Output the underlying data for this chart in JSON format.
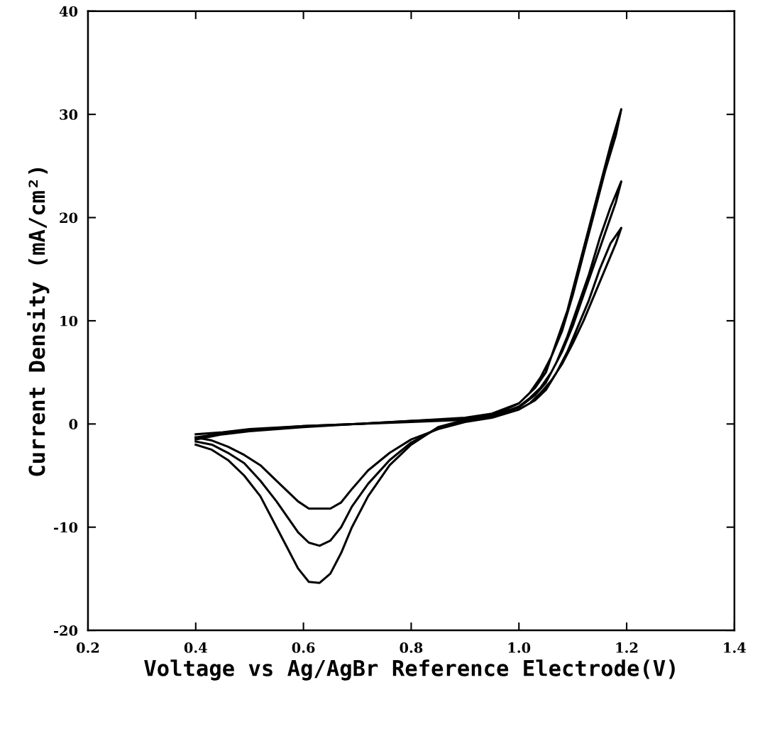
{
  "chart_data": {
    "type": "line",
    "xlabel": "Voltage vs Ag/AgBr Reference Electrode(V)",
    "ylabel": "Current Density (mA/cm²)",
    "xlim": [
      0.2,
      1.4
    ],
    "xticks": [
      {
        "value": 0.2,
        "label": "0.2"
      },
      {
        "value": 0.4,
        "label": "0.4"
      },
      {
        "value": 0.6,
        "label": "0.6"
      },
      {
        "value": 0.8,
        "label": "0.8"
      },
      {
        "value": 1.0,
        "label": "1.0"
      },
      {
        "value": 1.2,
        "label": "1.2"
      },
      {
        "value": 1.4,
        "label": "1.4"
      }
    ],
    "ylim": [
      -20,
      40
    ],
    "yticks": [
      -20,
      -10,
      0,
      10,
      20,
      30,
      40
    ],
    "grid": false,
    "marker": "none",
    "line_style": "solid",
    "series": [
      {
        "color": "#000000",
        "x": [
          0.4,
          0.45,
          0.5,
          0.6,
          0.7,
          0.8,
          0.9,
          0.95,
          1.0,
          1.03,
          1.05,
          1.07,
          1.09,
          1.11,
          1.13,
          1.15,
          1.17,
          1.19,
          1.18,
          1.16,
          1.14,
          1.12,
          1.1,
          1.08,
          1.06,
          1.04,
          1.02,
          1.0,
          0.95,
          0.9,
          0.85,
          0.8,
          0.76,
          0.72,
          0.69,
          0.67,
          0.65,
          0.63,
          0.61,
          0.59,
          0.57,
          0.55,
          0.52,
          0.49,
          0.46,
          0.43,
          0.4
        ],
        "values": [
          -1.5,
          -1.0,
          -0.7,
          -0.3,
          0,
          0.3,
          0.6,
          1.0,
          2.0,
          3.5,
          5,
          8,
          11,
          15,
          19,
          23,
          27,
          30.5,
          28,
          24.5,
          20.5,
          16.5,
          12.5,
          9,
          6.5,
          4.5,
          3,
          2,
          0.8,
          0.4,
          -0.3,
          -2,
          -4,
          -7,
          -10,
          -12.5,
          -14.5,
          -15.4,
          -15.3,
          -14,
          -12,
          -10,
          -7,
          -5,
          -3.5,
          -2.5,
          -2
        ]
      },
      {
        "color": "#000000",
        "x": [
          0.4,
          0.45,
          0.5,
          0.6,
          0.7,
          0.8,
          0.9,
          0.95,
          1.0,
          1.03,
          1.05,
          1.07,
          1.09,
          1.11,
          1.13,
          1.15,
          1.17,
          1.19,
          1.18,
          1.16,
          1.14,
          1.12,
          1.1,
          1.08,
          1.06,
          1.04,
          1.02,
          1.0,
          0.95,
          0.9,
          0.85,
          0.8,
          0.76,
          0.72,
          0.69,
          0.67,
          0.65,
          0.63,
          0.61,
          0.59,
          0.57,
          0.55,
          0.52,
          0.49,
          0.46,
          0.43,
          0.4
        ],
        "values": [
          -1.3,
          -0.9,
          -0.6,
          -0.2,
          0,
          0.3,
          0.5,
          0.9,
          1.6,
          2.8,
          4,
          6,
          8.5,
          11.5,
          14.5,
          18,
          21,
          23.5,
          21.5,
          18.5,
          15.5,
          12.5,
          9.5,
          7,
          5,
          3.5,
          2.5,
          1.7,
          0.7,
          0.3,
          -0.4,
          -1.8,
          -3.5,
          -5.8,
          -8,
          -10,
          -11.3,
          -11.8,
          -11.5,
          -10.5,
          -9,
          -7.5,
          -5.5,
          -3.8,
          -2.8,
          -2,
          -1.7
        ]
      },
      {
        "color": "#000000",
        "x": [
          0.4,
          0.45,
          0.5,
          0.6,
          0.7,
          0.8,
          0.9,
          0.95,
          1.0,
          1.03,
          1.05,
          1.07,
          1.09,
          1.11,
          1.13,
          1.15,
          1.17,
          1.19,
          1.18,
          1.16,
          1.14,
          1.12,
          1.1,
          1.08,
          1.06,
          1.04,
          1.02,
          1.0,
          0.95,
          0.9,
          0.85,
          0.8,
          0.76,
          0.72,
          0.69,
          0.67,
          0.65,
          0.63,
          0.61,
          0.59,
          0.57,
          0.55,
          0.52,
          0.49,
          0.46,
          0.43,
          0.4
        ],
        "values": [
          -1.0,
          -0.8,
          -0.5,
          -0.2,
          0,
          0.2,
          0.4,
          0.8,
          1.4,
          2.3,
          3.3,
          5,
          7,
          9.5,
          12,
          15,
          17.5,
          19,
          17.5,
          15,
          12.5,
          10,
          7.8,
          5.8,
          4.2,
          3,
          2,
          1.4,
          0.6,
          0.2,
          -0.5,
          -1.5,
          -2.8,
          -4.5,
          -6.3,
          -7.6,
          -8.2,
          -8.2,
          -8.2,
          -7.5,
          -6.5,
          -5.5,
          -4,
          -3,
          -2.2,
          -1.6,
          -1.3
        ]
      }
    ]
  }
}
